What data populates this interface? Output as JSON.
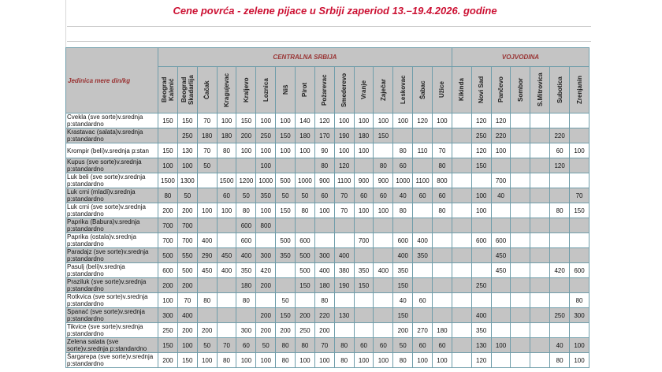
{
  "title": "Cene povrća - zelene pijace u Srbiji zaperiod 13.–19.4.2026. godine",
  "table": {
    "unit_label": "Jedinica mere din/kg",
    "groups": [
      {
        "name": "CENTRALNA SRBIJA",
        "columns": [
          "Beograd Kalenić",
          "Beograd Skadarlija",
          "Čačak",
          "Kragujevac",
          "Kraljevo",
          "Loznica",
          "Niš",
          "Pirot",
          "Požarevac",
          "Smederevo",
          "Vranje",
          "Zaječar",
          "Leskovac",
          "Šabac",
          "Užice"
        ]
      },
      {
        "name": "VOJVODINA",
        "columns": [
          "Kikinda",
          "Novi Sad",
          "Pančevo",
          "Sombor",
          "S.Mitrovica",
          "Subotica",
          "Zrenjanin"
        ]
      }
    ],
    "rows": [
      {
        "label": "Cvekla (sve sorte)v.srednja p:standardno",
        "values": [
          150,
          150,
          70,
          100,
          150,
          100,
          100,
          140,
          120,
          100,
          100,
          100,
          100,
          120,
          100,
          null,
          120,
          120,
          null,
          null,
          null,
          null
        ]
      },
      {
        "label": "Krastavac (salata)v.srednja p:standardno",
        "values": [
          null,
          250,
          180,
          180,
          200,
          250,
          150,
          180,
          170,
          190,
          180,
          150,
          null,
          null,
          null,
          null,
          250,
          220,
          null,
          null,
          220,
          null
        ]
      },
      {
        "label": "Krompir (beli)v.srednja p:stan",
        "values": [
          150,
          130,
          70,
          80,
          100,
          100,
          100,
          100,
          90,
          100,
          100,
          null,
          80,
          110,
          70,
          null,
          120,
          100,
          null,
          null,
          60,
          100
        ]
      },
      {
        "label": "Kupus (sve sorte)v.srednja p:standardno",
        "values": [
          100,
          100,
          50,
          null,
          null,
          100,
          null,
          null,
          80,
          120,
          null,
          80,
          60,
          null,
          80,
          null,
          150,
          null,
          null,
          null,
          120,
          null
        ]
      },
      {
        "label": "Luk beli (sve sorte)v.srednja p:standardno",
        "values": [
          1500,
          1300,
          null,
          1500,
          1200,
          1000,
          500,
          1000,
          900,
          1100,
          900,
          900,
          1000,
          1100,
          800,
          null,
          null,
          700,
          null,
          null,
          null,
          null
        ]
      },
      {
        "label": "Luk crni (mladi)v.srednja p:standardno",
        "values": [
          80,
          50,
          null,
          60,
          50,
          350,
          50,
          50,
          60,
          70,
          60,
          60,
          40,
          60,
          60,
          null,
          100,
          40,
          null,
          null,
          null,
          70
        ]
      },
      {
        "label": "Luk crni (sve sorte)v.srednja p:standardno",
        "values": [
          200,
          200,
          100,
          100,
          80,
          100,
          150,
          80,
          100,
          70,
          100,
          100,
          80,
          null,
          80,
          null,
          100,
          null,
          null,
          null,
          80,
          150
        ]
      },
      {
        "label": "Paprika (Babura)v.srednja p:standardno",
        "values": [
          700,
          700,
          null,
          null,
          600,
          800,
          null,
          null,
          null,
          null,
          null,
          null,
          null,
          null,
          null,
          null,
          null,
          null,
          null,
          null,
          null,
          null
        ]
      },
      {
        "label": "Paprika (ostala)v.srednja p:standardno",
        "values": [
          700,
          700,
          400,
          null,
          600,
          null,
          500,
          600,
          null,
          null,
          700,
          null,
          600,
          400,
          null,
          null,
          600,
          600,
          null,
          null,
          null,
          null
        ]
      },
      {
        "label": "Paradajz (sve sorte)v.srednja p:standardno",
        "values": [
          500,
          550,
          290,
          450,
          400,
          300,
          350,
          500,
          300,
          400,
          null,
          null,
          400,
          350,
          null,
          null,
          null,
          450,
          null,
          null,
          null,
          null
        ]
      },
      {
        "label": "Pasulj (beli)v.srednja p:standardno",
        "values": [
          600,
          500,
          450,
          400,
          350,
          420,
          null,
          500,
          400,
          380,
          350,
          400,
          350,
          null,
          null,
          null,
          null,
          450,
          null,
          null,
          420,
          600
        ]
      },
      {
        "label": "Praziluk (sve sorte)v.srednja p:standardno",
        "values": [
          200,
          200,
          null,
          null,
          180,
          200,
          null,
          150,
          180,
          190,
          150,
          null,
          150,
          null,
          null,
          null,
          250,
          null,
          null,
          null,
          null,
          null
        ]
      },
      {
        "label": "Rotkvica (sve sorte)v.srednja p:standardno",
        "values": [
          100,
          70,
          80,
          null,
          80,
          null,
          50,
          null,
          80,
          null,
          null,
          null,
          40,
          60,
          null,
          null,
          null,
          null,
          null,
          null,
          null,
          80
        ]
      },
      {
        "label": "Spanać (sve sorte)v.srednja p:standardno",
        "values": [
          300,
          400,
          null,
          null,
          null,
          200,
          150,
          200,
          220,
          130,
          null,
          null,
          150,
          null,
          null,
          null,
          400,
          null,
          null,
          null,
          250,
          300
        ]
      },
      {
        "label": "Tikvice (sve sorte)v.srednja p:standardno",
        "values": [
          250,
          200,
          200,
          null,
          300,
          200,
          200,
          250,
          200,
          null,
          null,
          null,
          200,
          270,
          180,
          null,
          350,
          null,
          null,
          null,
          null,
          null
        ]
      },
      {
        "label": "Zelena salata (sve sorte)v.srednja p:standardno",
        "values": [
          150,
          100,
          50,
          70,
          60,
          50,
          80,
          80,
          70,
          80,
          60,
          60,
          50,
          60,
          60,
          null,
          130,
          100,
          null,
          null,
          40,
          100
        ]
      },
      {
        "label": "Šargarepa (sve sorte)v.srednja p:standardno",
        "values": [
          200,
          150,
          100,
          80,
          100,
          100,
          80,
          100,
          100,
          80,
          100,
          100,
          80,
          100,
          100,
          null,
          120,
          null,
          null,
          null,
          80,
          100
        ]
      }
    ]
  }
}
